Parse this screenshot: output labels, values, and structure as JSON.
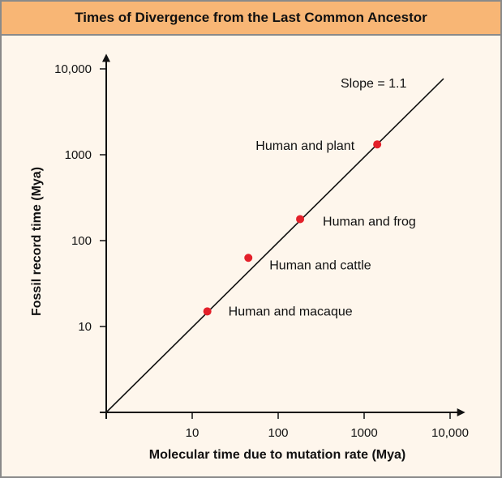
{
  "chart_data": {
    "type": "scatter",
    "title": "Times of Divergence from the Last Common Ancestor",
    "xlabel": "Molecular time due to mutation rate (Mya)",
    "ylabel": "Fossil record time (Mya)",
    "x_scale": "log",
    "y_scale": "log",
    "xlim": [
      1,
      15000
    ],
    "ylim": [
      1,
      15000
    ],
    "x_ticks": [
      10,
      100,
      1000,
      10000
    ],
    "x_tick_labels": [
      "10",
      "100",
      "1000",
      "10,000"
    ],
    "y_ticks": [
      10,
      100,
      1000,
      10000
    ],
    "y_tick_labels": [
      "10",
      "100",
      "1000",
      "10,000"
    ],
    "grid": false,
    "point_color": "#e3202a",
    "points": [
      {
        "label": "Human and macaque",
        "x": 15,
        "y": 15
      },
      {
        "label": "Human and cattle",
        "x": 45,
        "y": 63
      },
      {
        "label": "Human and frog",
        "x": 180,
        "y": 178
      },
      {
        "label": "Human and plant",
        "x": 1420,
        "y": 1320
      }
    ],
    "fit_line": {
      "label": "Slope = 1.1",
      "slope": 1.1,
      "from": [
        1,
        1
      ],
      "to": [
        8400,
        7700
      ]
    }
  }
}
